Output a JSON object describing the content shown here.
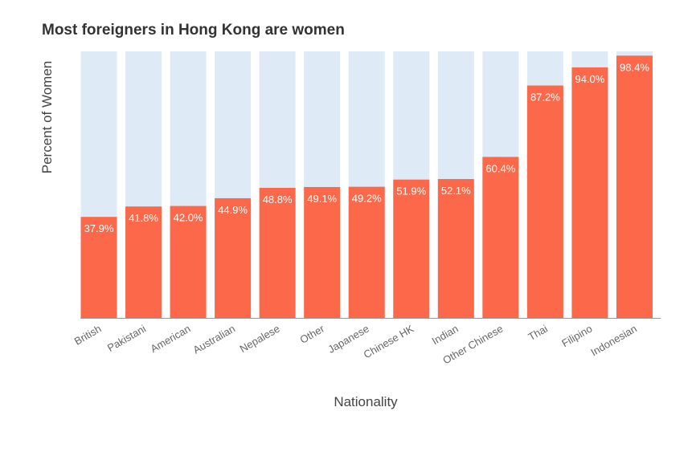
{
  "chart_data": {
    "type": "bar",
    "title": "Most foreigners in Hong Kong are women",
    "xlabel": "Nationality",
    "ylabel": "Percent of Women",
    "ylim": [
      0,
      100
    ],
    "grid": false,
    "legend": "none",
    "categories": [
      "British",
      "Pakistani",
      "American",
      "Australian",
      "Nepalese",
      "Other",
      "Japanese",
      "Chinese HK",
      "Indian",
      "Other Chinese",
      "Thai",
      "Filipino",
      "Indonesian"
    ],
    "values": [
      37.9,
      41.8,
      42.0,
      44.9,
      48.8,
      49.1,
      49.2,
      51.9,
      52.1,
      60.4,
      87.2,
      94.0,
      98.4
    ],
    "value_labels": [
      "37.9%",
      "41.8%",
      "42.0%",
      "44.9%",
      "48.8%",
      "49.1%",
      "49.2%",
      "51.9%",
      "52.1%",
      "60.4%",
      "87.2%",
      "94.0%",
      "98.4%"
    ]
  },
  "colors": {
    "bar": "#fb694a",
    "background_bar": "#deebf7",
    "axis": "#999999",
    "tick_text": "#666666",
    "axis_title": "#444444",
    "value_label": "#ffffff"
  }
}
